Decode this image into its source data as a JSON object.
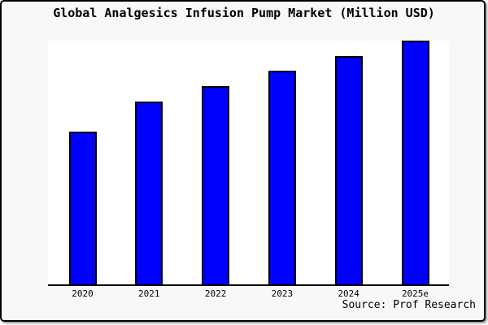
{
  "title": "Global Analgesics Infusion Pump Market (Million USD)",
  "source_note": "Source: Prof Research",
  "colors": {
    "bar_fill": "#0000ff",
    "bar_border": "#000000",
    "frame_background": "#f8f8f8",
    "plot_background": "#ffffff",
    "axis": "#000000",
    "text": "#000000"
  },
  "chart_data": {
    "type": "bar",
    "title": "Global Analgesics Infusion Pump Market (Million USD)",
    "categories": [
      "2020",
      "2021",
      "2022",
      "2023",
      "2024",
      "2025e"
    ],
    "values": [
      62.7,
      75.0,
      81.5,
      87.7,
      93.7,
      100
    ],
    "value_note": "no y-axis scale shown; values are relative heights (% of tallest bar)",
    "xlabel": "",
    "ylabel": "",
    "ylim": [
      0,
      100
    ],
    "grid": false,
    "legend": false,
    "source": "Source: Prof Research"
  }
}
